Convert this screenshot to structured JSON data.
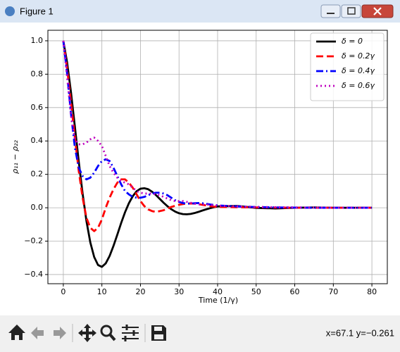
{
  "window": {
    "title": "Figure 1",
    "status": "x=67.1 y=−0.261"
  },
  "chart_data": {
    "type": "line",
    "xlabel": "Time (1/γ)",
    "ylabel": "ρ₁₁ − ρ₂₂",
    "x": [
      0,
      1,
      2,
      3,
      4,
      5,
      6,
      7,
      8,
      9,
      10,
      11,
      12,
      13,
      14,
      15,
      16,
      17,
      18,
      19,
      20,
      21,
      22,
      23,
      24,
      25,
      26,
      27,
      28,
      29,
      30,
      31,
      32,
      33,
      34,
      35,
      36,
      37,
      38,
      39,
      40,
      45,
      50,
      55,
      60,
      65,
      70,
      75,
      80
    ],
    "series": [
      {
        "name": "δ = 0",
        "color": "#000000",
        "linestyle": "solid",
        "values": [
          1.0,
          0.868,
          0.689,
          0.485,
          0.277,
          0.085,
          -0.08,
          -0.208,
          -0.295,
          -0.343,
          -0.354,
          -0.333,
          -0.289,
          -0.229,
          -0.161,
          -0.091,
          -0.027,
          0.027,
          0.069,
          0.099,
          0.114,
          0.117,
          0.111,
          0.096,
          0.076,
          0.053,
          0.03,
          0.009,
          -0.009,
          -0.023,
          -0.033,
          -0.038,
          -0.039,
          -0.037,
          -0.032,
          -0.025,
          -0.017,
          -0.01,
          -0.003,
          0.003,
          0.008,
          0.011,
          -0.001,
          -0.004,
          0,
          0.002,
          0,
          0,
          0
        ]
      },
      {
        "name": "δ = 0.2γ",
        "color": "#ff0000",
        "linestyle": "dashed",
        "values": [
          1.0,
          0.83,
          0.63,
          0.42,
          0.22,
          0.06,
          -0.06,
          -0.12,
          -0.14,
          -0.12,
          -0.07,
          0,
          0.06,
          0.11,
          0.15,
          0.17,
          0.17,
          0.15,
          0.12,
          0.08,
          0.04,
          0.01,
          -0.01,
          -0.02,
          -0.025,
          -0.02,
          -0.015,
          -0.005,
          0.005,
          0.012,
          0.018,
          0.022,
          0.025,
          0.026,
          0.025,
          0.022,
          0.018,
          0.014,
          0.01,
          0.007,
          0.005,
          0.003,
          0.002,
          0.001,
          0,
          0,
          0,
          0,
          0
        ]
      },
      {
        "name": "δ = 0.4γ",
        "color": "#0000ff",
        "linestyle": "dashdot",
        "values": [
          1.0,
          0.8,
          0.56,
          0.36,
          0.24,
          0.19,
          0.17,
          0.18,
          0.21,
          0.25,
          0.28,
          0.29,
          0.28,
          0.24,
          0.19,
          0.14,
          0.1,
          0.08,
          0.065,
          0.06,
          0.06,
          0.065,
          0.075,
          0.085,
          0.09,
          0.09,
          0.085,
          0.075,
          0.06,
          0.045,
          0.035,
          0.028,
          0.025,
          0.025,
          0.027,
          0.028,
          0.027,
          0.024,
          0.02,
          0.017,
          0.014,
          0.008,
          0.004,
          0.002,
          0.001,
          0,
          0,
          0,
          0
        ]
      },
      {
        "name": "δ = 0.6γ",
        "color": "#bf00bf",
        "linestyle": "dotted",
        "values": [
          1.0,
          0.78,
          0.55,
          0.41,
          0.38,
          0.38,
          0.39,
          0.41,
          0.42,
          0.4,
          0.37,
          0.31,
          0.25,
          0.21,
          0.18,
          0.16,
          0.15,
          0.14,
          0.12,
          0.1,
          0.09,
          0.085,
          0.085,
          0.085,
          0.08,
          0.075,
          0.065,
          0.055,
          0.045,
          0.04,
          0.04,
          0.04,
          0.035,
          0.03,
          0.025,
          0.02,
          0.02,
          0.02,
          0.018,
          0.015,
          0.012,
          0.008,
          0.005,
          0.003,
          0.002,
          0.001,
          0,
          0,
          0
        ]
      }
    ],
    "xlim": [
      -4,
      84
    ],
    "ylim": [
      -0.455,
      1.063
    ],
    "xticks": [
      0,
      10,
      20,
      30,
      40,
      50,
      60,
      70,
      80
    ],
    "yticks": [
      {
        "value": -0.4,
        "label": "−0.4"
      },
      {
        "value": -0.2,
        "label": "−0.2"
      },
      {
        "value": 0,
        "label": "0.0"
      },
      {
        "value": 0.2,
        "label": "0.2"
      },
      {
        "value": 0.4,
        "label": "0.4"
      },
      {
        "value": 0.6,
        "label": "0.6"
      },
      {
        "value": 0.8,
        "label": "0.8"
      },
      {
        "value": 1.0,
        "label": "1.0"
      }
    ],
    "grid": true,
    "legend": "upper right"
  }
}
